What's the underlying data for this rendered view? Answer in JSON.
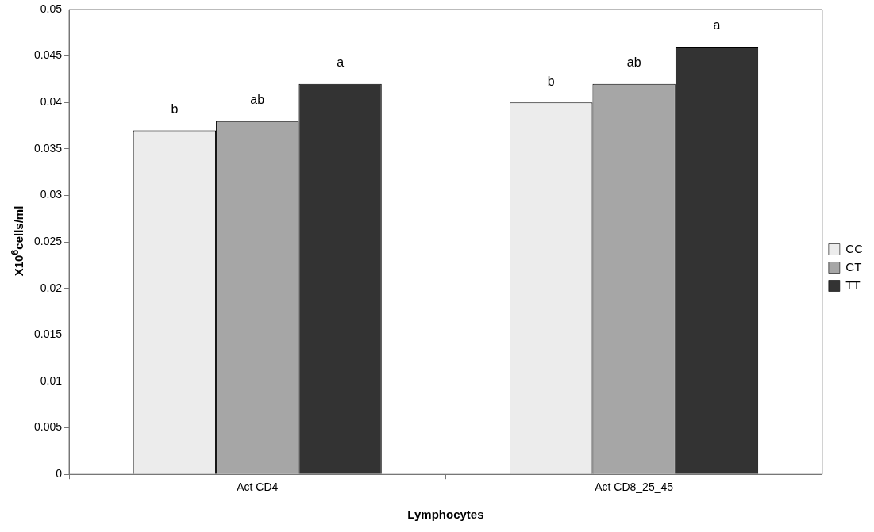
{
  "chart_data": {
    "type": "bar",
    "xlabel": "Lymphocytes",
    "ylabel": "X10$^{6}$cells/ml",
    "categories": [
      "Act CD4",
      "Act CD8_25_45"
    ],
    "series": [
      {
        "name": "CC",
        "color": "#ececec",
        "values": [
          0.037,
          0.04
        ],
        "value_labels": [
          "b",
          "b"
        ]
      },
      {
        "name": "CT",
        "color": "#a6a6a6",
        "values": [
          0.038,
          0.042
        ],
        "value_labels": [
          "ab",
          "ab"
        ]
      },
      {
        "name": "TT",
        "color": "#333333",
        "values": [
          0.042,
          0.046
        ],
        "value_labels": [
          "a",
          "a"
        ]
      }
    ],
    "ylim": [
      0,
      0.05
    ],
    "yticks": [
      0,
      0.005,
      0.01,
      0.015,
      0.02,
      0.025,
      0.03,
      0.035,
      0.04,
      0.045,
      0.05
    ],
    "grid": false,
    "legend": "right"
  }
}
